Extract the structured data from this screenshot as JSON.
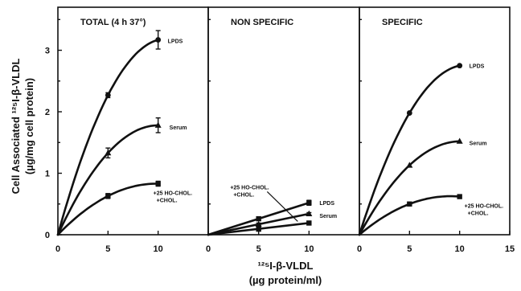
{
  "figure": {
    "y_title_line1": "Cell Associated ¹²⁵I-β-VLDL",
    "y_title_line2": "(µg/mg cell protein)",
    "x_title_line1": "¹²⁵I-β-VLDL",
    "x_title_line2": "(µg protein/ml)"
  },
  "chart_data": [
    {
      "type": "line",
      "title": "TOTAL (4 h   37°)",
      "xlim": [
        0,
        15
      ],
      "ylim": [
        0,
        3.7
      ],
      "x_ticks": [
        "0",
        "5",
        "10"
      ],
      "y_ticks": [
        "0",
        "1",
        "2",
        "3"
      ],
      "series": [
        {
          "name": "LPDS",
          "marker": "circle",
          "x": [
            0,
            5,
            10
          ],
          "y": [
            0,
            2.27,
            3.17
          ],
          "err": [
            0,
            0.04,
            0.15
          ]
        },
        {
          "name": "Serum",
          "marker": "triangle",
          "x": [
            0,
            5,
            10
          ],
          "y": [
            0,
            1.33,
            1.78
          ],
          "err": [
            0,
            0.08,
            0.12
          ]
        },
        {
          "name": "+25 HO-CHOL. +CHOL.",
          "marker": "square",
          "x": [
            0,
            5,
            10
          ],
          "y": [
            0,
            0.63,
            0.83
          ],
          "err": [
            0,
            0.04,
            0.04
          ]
        }
      ]
    },
    {
      "type": "line",
      "title": "NON SPECIFIC",
      "xlim": [
        0,
        15
      ],
      "ylim": [
        0,
        3.7
      ],
      "x_ticks": [
        "0",
        "5",
        "10"
      ],
      "series": [
        {
          "name": "LPDS",
          "marker": "square",
          "x": [
            0,
            5,
            10
          ],
          "y": [
            0,
            0.26,
            0.52
          ],
          "err": [
            0,
            0.03,
            0.04
          ]
        },
        {
          "name": "Serum",
          "marker": "triangle",
          "x": [
            0,
            5,
            10
          ],
          "y": [
            0,
            0.17,
            0.34
          ],
          "err": [
            0,
            0.02,
            0.02
          ]
        },
        {
          "name": "+25 HO-CHOL. +CHOL.",
          "marker": "square",
          "x": [
            0,
            5,
            10
          ],
          "y": [
            0,
            0.09,
            0.19
          ],
          "err": [
            0,
            0.02,
            0.03
          ]
        }
      ]
    },
    {
      "type": "line",
      "title": "SPECIFIC",
      "xlim": [
        0,
        15
      ],
      "ylim": [
        0,
        3.7
      ],
      "x_ticks": [
        "0",
        "5",
        "10",
        "15"
      ],
      "series": [
        {
          "name": "LPDS",
          "marker": "circle",
          "x": [
            0,
            5,
            10
          ],
          "y": [
            0,
            1.98,
            2.75
          ]
        },
        {
          "name": "Serum",
          "marker": "triangle",
          "x": [
            0,
            5,
            10
          ],
          "y": [
            0,
            1.13,
            1.52
          ]
        },
        {
          "name": "+25 HO-CHOL. +CHOL.",
          "marker": "square",
          "x": [
            0,
            5,
            10
          ],
          "y": [
            0,
            0.5,
            0.62
          ]
        }
      ]
    }
  ]
}
